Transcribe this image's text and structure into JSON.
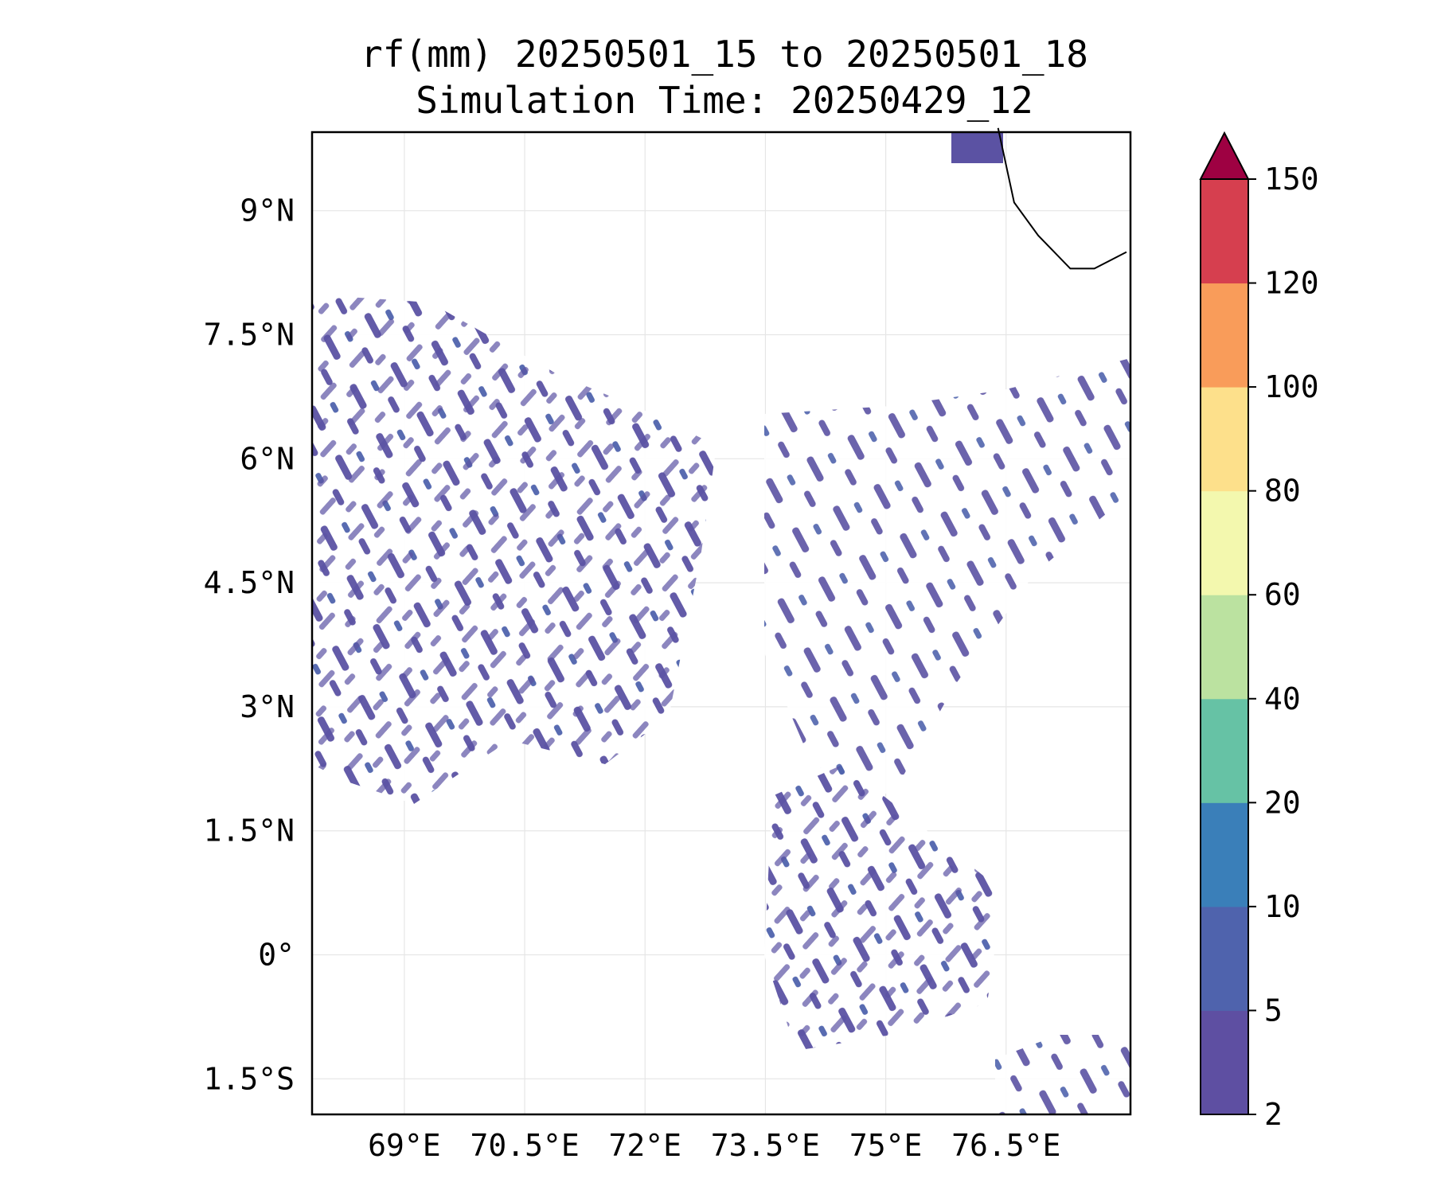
{
  "title": {
    "line1": "rf(mm) 20250501_15 to 20250501_18",
    "line2": "Simulation Time: 20250429_12"
  },
  "map": {
    "lon_range": [
      67.85,
      78.05
    ],
    "lat_range": [
      -1.93,
      9.95
    ],
    "x_ticks": [
      {
        "value": 69.0,
        "label": "69°E"
      },
      {
        "value": 70.5,
        "label": "70.5°E"
      },
      {
        "value": 72.0,
        "label": "72°E"
      },
      {
        "value": 73.5,
        "label": "73.5°E"
      },
      {
        "value": 75.0,
        "label": "75°E"
      },
      {
        "value": 76.5,
        "label": "76.5°E"
      }
    ],
    "y_ticks": [
      {
        "value": 9.0,
        "label": "9°N"
      },
      {
        "value": 7.5,
        "label": "7.5°N"
      },
      {
        "value": 6.0,
        "label": "6°N"
      },
      {
        "value": 4.5,
        "label": "4.5°N"
      },
      {
        "value": 3.0,
        "label": "3°N"
      },
      {
        "value": 1.5,
        "label": "1.5°N"
      },
      {
        "value": 0.0,
        "label": "0°"
      },
      {
        "value": -1.5,
        "label": "1.5°S"
      }
    ],
    "gridlines": true,
    "coastline_points": [
      [
        76.4,
        10.0
      ],
      [
        76.6,
        9.1
      ],
      [
        76.9,
        8.7
      ],
      [
        77.3,
        8.3
      ],
      [
        77.6,
        8.3
      ],
      [
        78.0,
        8.5
      ]
    ],
    "rain_color": "#5b52a3"
  },
  "colorbar": {
    "levels": [
      "2",
      "5",
      "10",
      "20",
      "40",
      "60",
      "80",
      "100",
      "120",
      "150"
    ],
    "colors": [
      "#5e4fa2",
      "#4f63ad",
      "#3a7fb9",
      "#66c2a5",
      "#bbe2a0",
      "#f3f8ae",
      "#fde08b",
      "#f99c5a",
      "#d63f4f"
    ],
    "extend_color": "#9e0142",
    "extend": "max"
  }
}
